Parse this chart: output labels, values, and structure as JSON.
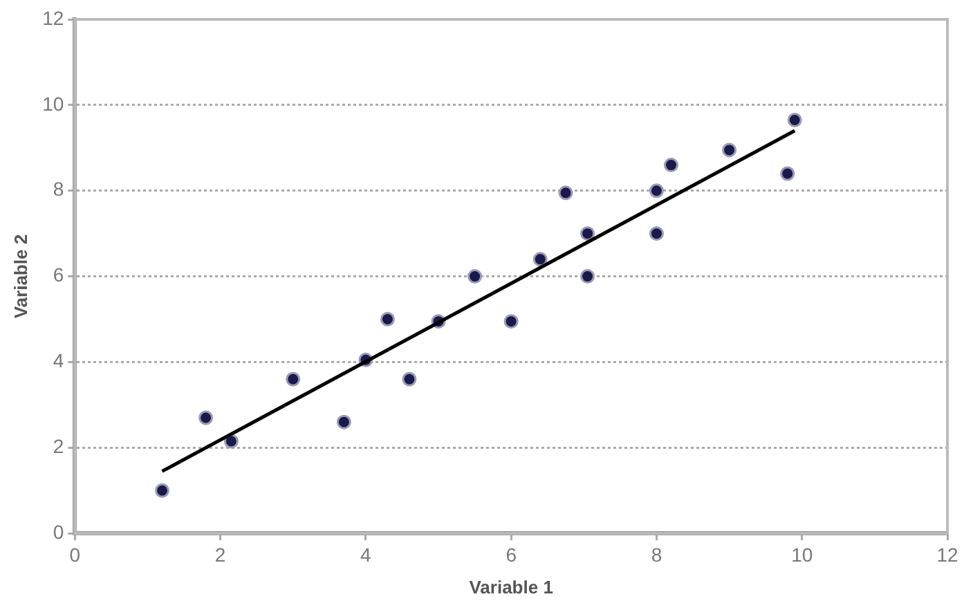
{
  "chart_data": {
    "type": "scatter",
    "xlabel": "Variable 1",
    "ylabel": "Variable 2",
    "xlim": [
      0,
      12
    ],
    "xticks": [
      0,
      2,
      4,
      6,
      8,
      10,
      12
    ],
    "ylim": [
      0,
      12
    ],
    "yticks": [
      0,
      2,
      4,
      6,
      8,
      10,
      12
    ],
    "grid": "y",
    "marker": "circle",
    "legend": false,
    "series": [
      {
        "color": "#1a1a4a",
        "x": [
          1.2,
          1.8,
          2.15,
          3.0,
          3.7,
          4.3,
          4.6,
          4.0,
          5.0,
          5.5,
          6.0,
          6.4,
          6.75,
          7.05,
          7.05,
          8.0,
          8.0,
          8.2,
          9.0,
          9.8,
          9.9
        ],
        "values": [
          1.0,
          2.7,
          2.15,
          3.6,
          2.6,
          5.0,
          3.6,
          4.05,
          4.95,
          6.0,
          4.95,
          6.4,
          7.95,
          7.0,
          6.0,
          7.0,
          8.0,
          8.6,
          8.95,
          8.4,
          9.65
        ]
      },
      {
        "type": "line",
        "marker": "none",
        "color": "#000000",
        "x": [
          1.2,
          9.9
        ],
        "values": [
          1.45,
          9.4
        ]
      }
    ]
  }
}
